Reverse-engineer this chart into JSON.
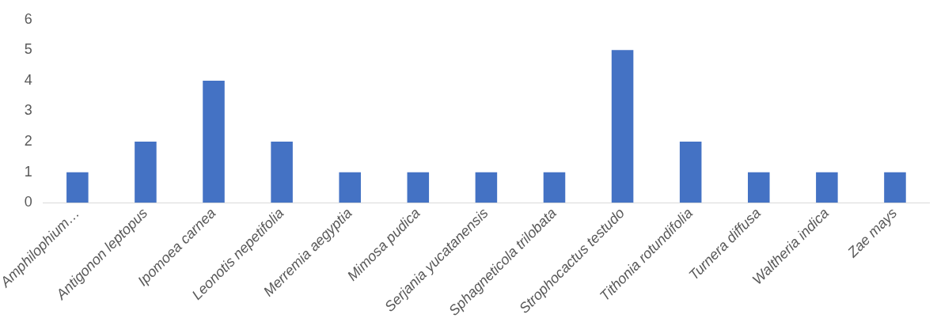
{
  "chart_data": {
    "type": "bar",
    "categories": [
      "Amphilophium…",
      "Antigonon leptopus",
      "Ipomoea carnea",
      "Leonotis nepetifolia",
      "Merremia aegyptia",
      "Mimosa pudica",
      "Serjania yucatanensis",
      "Sphagneticola trilobata",
      "Strophocactus testudo",
      "Tithonia rotundifolia",
      "Turnera diffusa",
      "Waltheria indica",
      "Zae mays"
    ],
    "values": [
      1,
      2,
      4,
      2,
      1,
      1,
      1,
      1,
      5,
      2,
      1,
      1,
      1
    ],
    "color": "#4472c4",
    "ylim": [
      0,
      6
    ],
    "yticks": [
      0,
      1,
      2,
      3,
      4,
      5,
      6
    ],
    "grid": false,
    "legend": false
  }
}
